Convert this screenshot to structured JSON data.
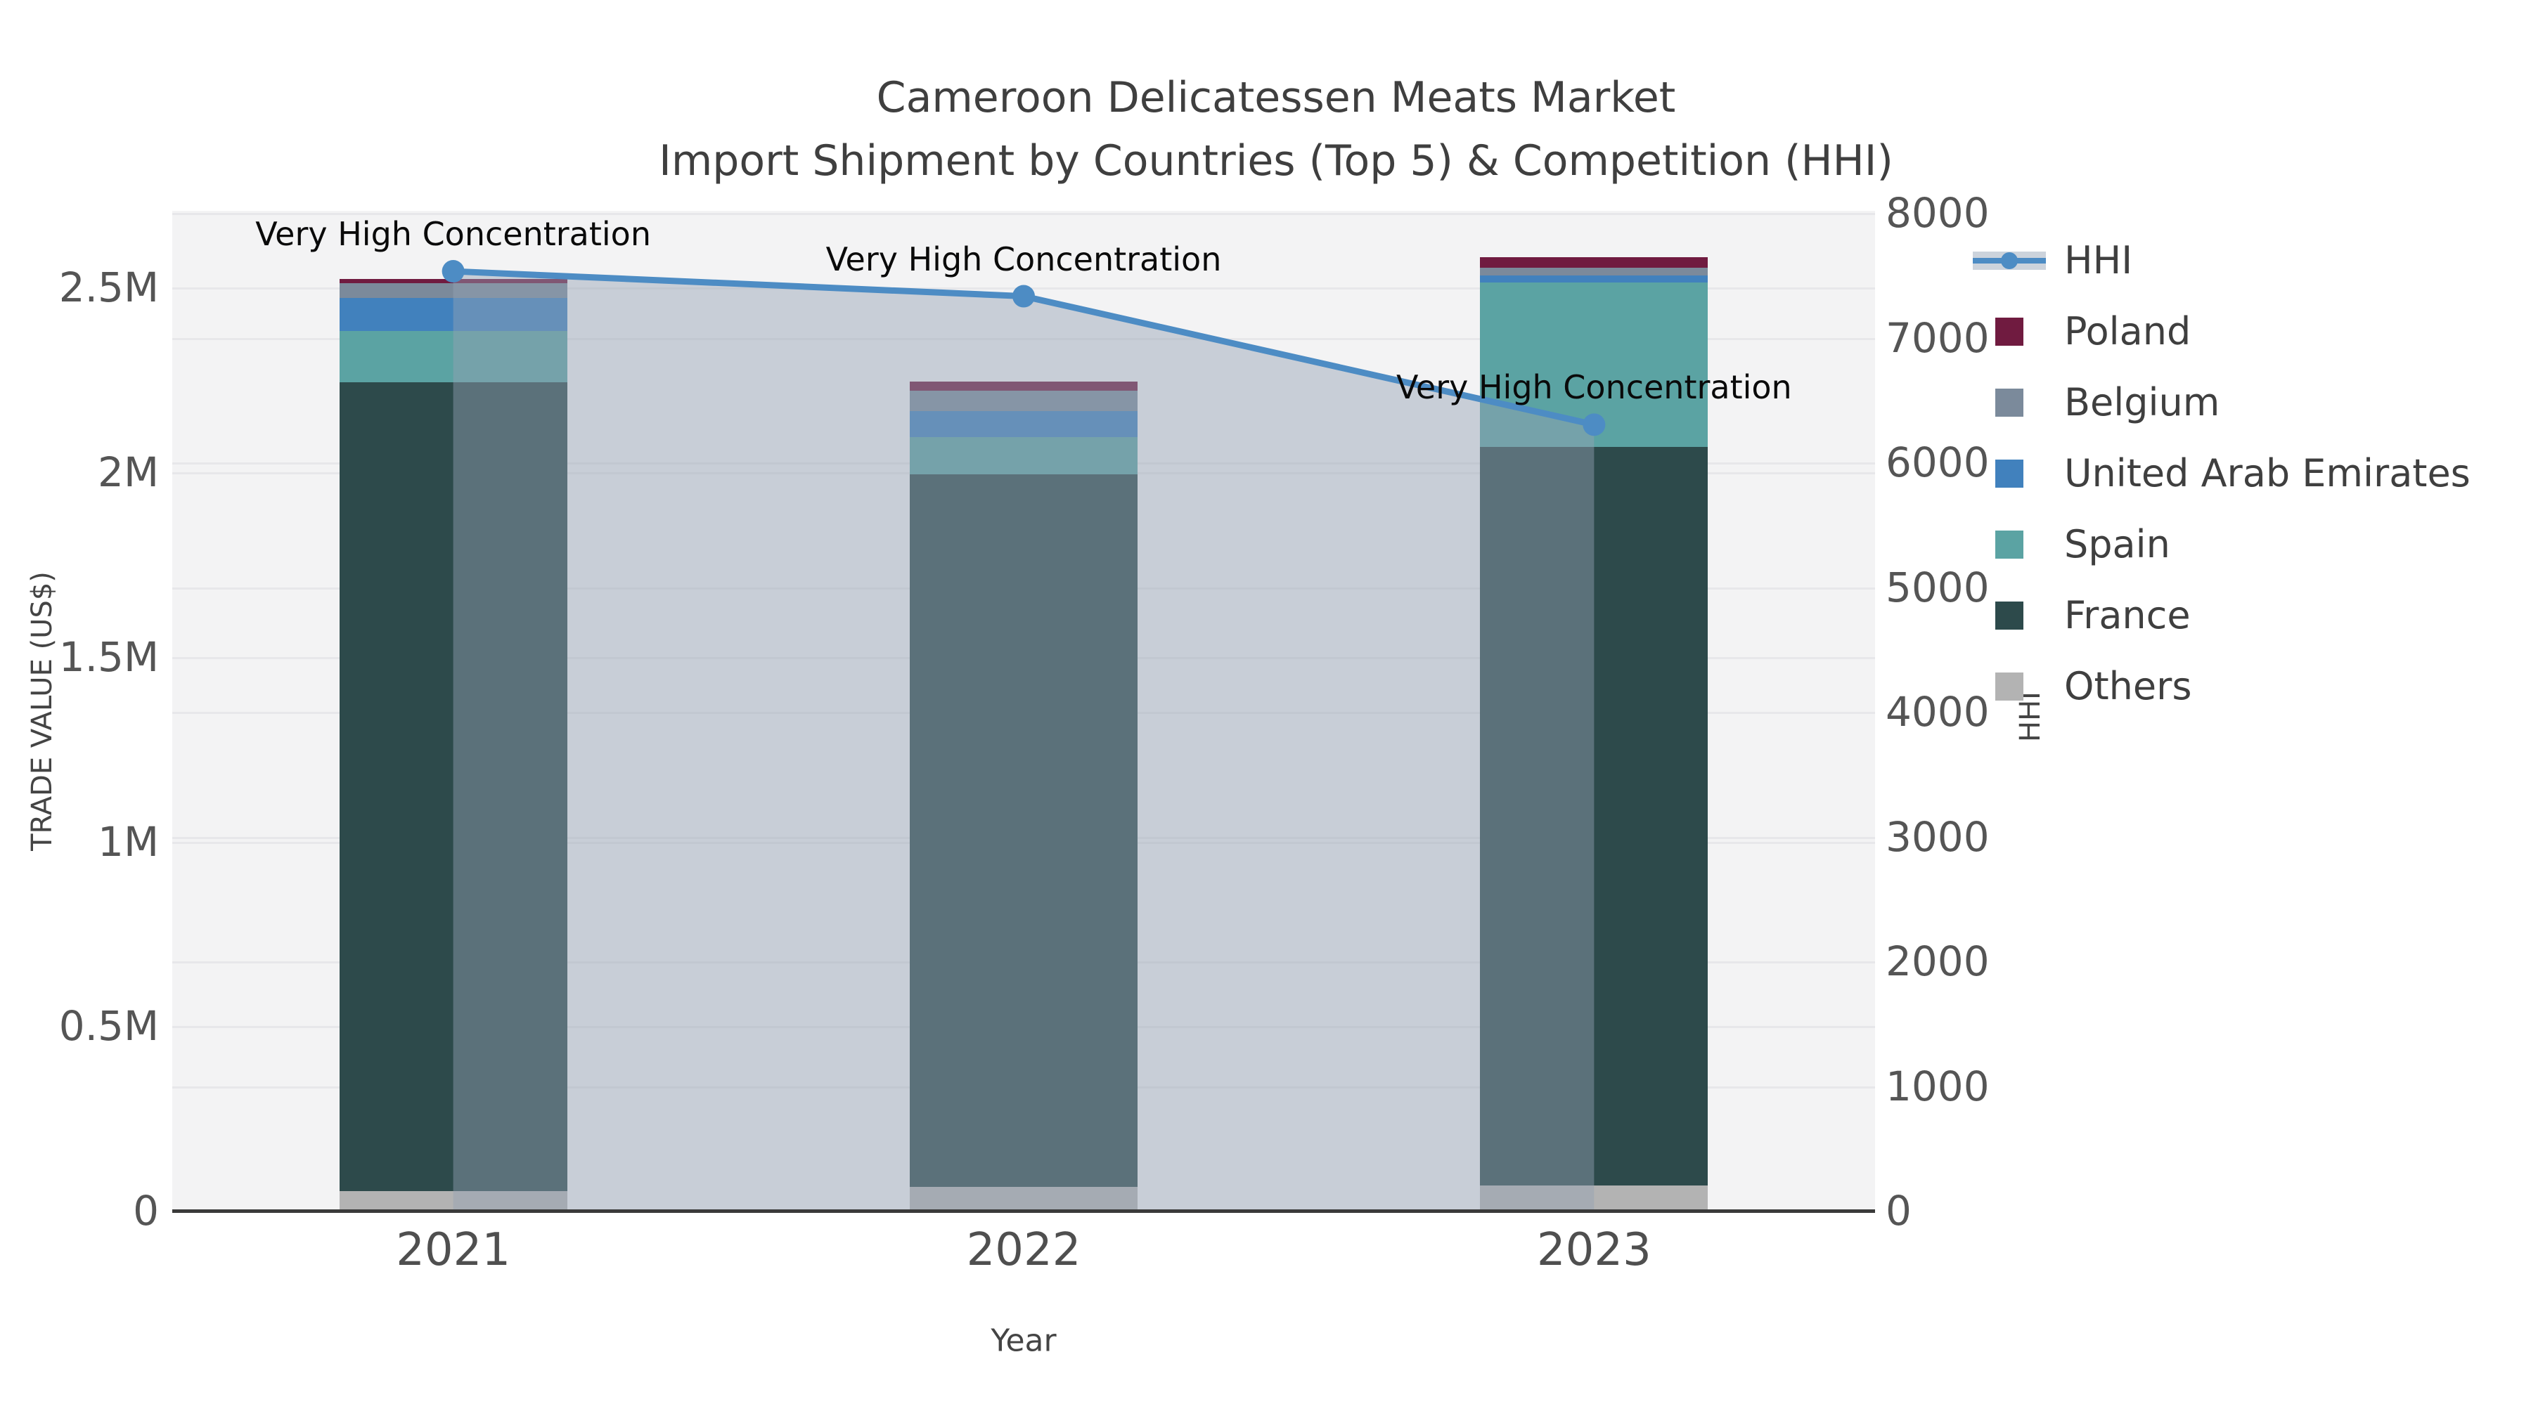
{
  "title": {
    "line1": "Cameroon Delicatessen Meats Market",
    "line2": "Import Shipment by Countries (Top 5) & Competition (HHI)"
  },
  "axes": {
    "x_label": "Year",
    "y_left_label": "TRADE VALUE (US$)",
    "y_right_label": "HHI",
    "x_ticks": [
      "2021",
      "2022",
      "2023"
    ],
    "y_left_ticks": [
      {
        "label": "0",
        "value": 0
      },
      {
        "label": "0.5M",
        "value": 500000
      },
      {
        "label": "1M",
        "value": 1000000
      },
      {
        "label": "1.5M",
        "value": 1500000
      },
      {
        "label": "2M",
        "value": 2000000
      },
      {
        "label": "2.5M",
        "value": 2500000
      }
    ],
    "y_right_ticks": [
      {
        "label": "0",
        "value": 0
      },
      {
        "label": "1000",
        "value": 1000
      },
      {
        "label": "2000",
        "value": 2000
      },
      {
        "label": "3000",
        "value": 3000
      },
      {
        "label": "4000",
        "value": 4000
      },
      {
        "label": "5000",
        "value": 5000
      },
      {
        "label": "6000",
        "value": 6000
      },
      {
        "label": "7000",
        "value": 7000
      },
      {
        "label": "8000",
        "value": 8000
      }
    ]
  },
  "legend": {
    "items": [
      {
        "label": "HHI",
        "type": "line",
        "color": "#4d8cc4",
        "band_color": "#ccd3dc"
      },
      {
        "label": "Poland",
        "type": "square",
        "color": "#701b40"
      },
      {
        "label": "Belgium",
        "type": "square",
        "color": "#7b8a9b"
      },
      {
        "label": "United Arab Emirates",
        "type": "square",
        "color": "#4181bd"
      },
      {
        "label": "Spain",
        "type": "square",
        "color": "#5ba3a3"
      },
      {
        "label": "France",
        "type": "square",
        "color": "#2d4a4b"
      },
      {
        "label": "Others",
        "type": "square",
        "color": "#b3b3b3"
      }
    ]
  },
  "colors": {
    "figure_background": "#ffffff",
    "plot_background": "#f3f3f4",
    "gridline": "#e7e7ea",
    "axis_line": "#3a3a3a",
    "tick_text": "#555555",
    "title_text": "#3f3f3f",
    "hhi_line": "#4d8cc4",
    "hhi_area_fill_rgba": "rgba(148,162,180,0.45)"
  },
  "chart_data": {
    "type": "combo: stacked bar (left axis) + line with markers (right axis)",
    "categories": [
      "2021",
      "2022",
      "2023"
    ],
    "bar_value_unit": "US$ trade value",
    "stack_order_bottom_to_top": [
      "Others",
      "France",
      "Spain",
      "United Arab Emirates",
      "Belgium",
      "Poland"
    ],
    "series": [
      {
        "name": "Others",
        "color": "#b3b3b3",
        "values": [
          55000,
          67000,
          71000
        ]
      },
      {
        "name": "France",
        "color": "#2d4a4b",
        "values": [
          2190000,
          1930000,
          2000000
        ]
      },
      {
        "name": "Spain",
        "color": "#5ba3a3",
        "values": [
          139000,
          101000,
          444000
        ]
      },
      {
        "name": "United Arab Emirates",
        "color": "#4181bd",
        "values": [
          90000,
          69000,
          19000
        ]
      },
      {
        "name": "Belgium",
        "color": "#7b8a9b",
        "values": [
          40000,
          55000,
          21000
        ]
      },
      {
        "name": "Poland",
        "color": "#701b40",
        "values": [
          11000,
          25000,
          29000
        ]
      }
    ],
    "bar_totals": [
      2525000,
      2247000,
      2584000
    ],
    "line_series": {
      "name": "HHI",
      "axis": "right",
      "color": "#4d8cc4",
      "values": [
        7540,
        7340,
        6310
      ],
      "area_fill": true
    },
    "annotations": [
      {
        "text": "Very High Concentration",
        "category": "2021"
      },
      {
        "text": "Very High Concentration",
        "category": "2022"
      },
      {
        "text": "Very High Concentration",
        "category": "2023"
      }
    ],
    "y_left_range": [
      0,
      2710000
    ],
    "y_right_range": [
      0,
      8025
    ],
    "grid": "horizontal gridlines for both axes",
    "legend_position": "right of plot, outside"
  }
}
